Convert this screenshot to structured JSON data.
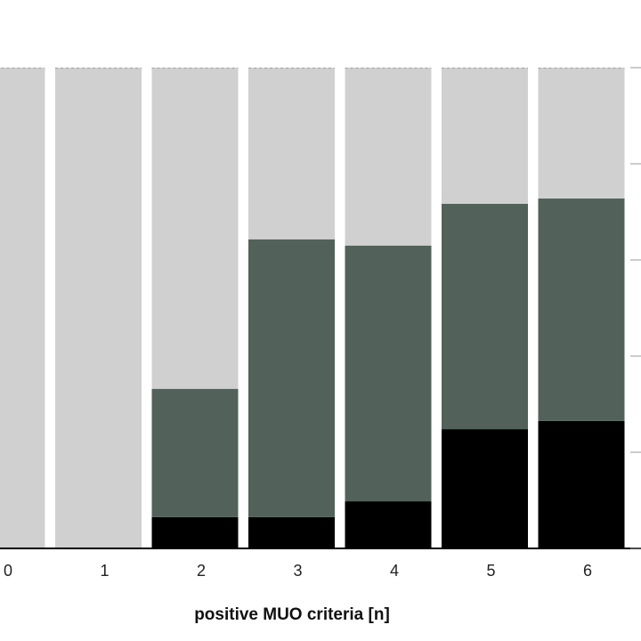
{
  "chart_data": {
    "type": "bar",
    "stacked": true,
    "percent_stacked": true,
    "categories": [
      "0",
      "1",
      "2",
      "3",
      "4",
      "5",
      "6"
    ],
    "series": [
      {
        "color": "#000000",
        "values": [
          0,
          0,
          6.5,
          6.5,
          9.8,
          24.8,
          26.5
        ]
      },
      {
        "color": "#52625a",
        "values": [
          0,
          0,
          26.7,
          57.8,
          53.2,
          46.9,
          46.3
        ]
      },
      {
        "color": "#d0d0d0",
        "values": [
          100,
          100,
          66.8,
          35.7,
          37.0,
          28.3,
          27.2
        ]
      }
    ],
    "xlabel": "positive MUO criteria [n]",
    "ylim": [
      0,
      100
    ],
    "ytick_count": 6,
    "grid": false
  }
}
